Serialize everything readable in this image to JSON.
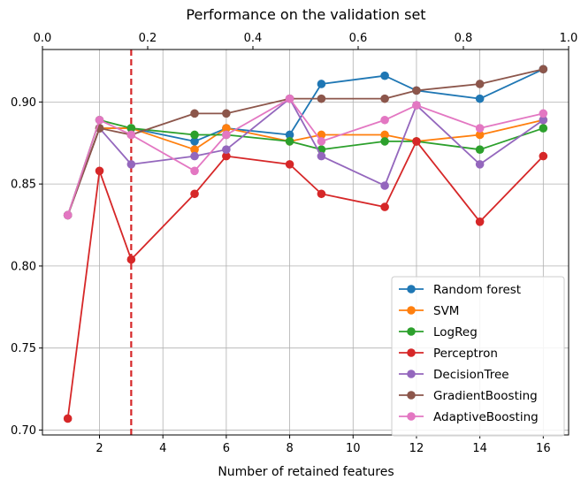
{
  "chart_data": {
    "type": "line",
    "title": "Performance on the validation set",
    "xlabel": "Number of retained features",
    "ylabel": "",
    "xlim": [
      0.2,
      16.8
    ],
    "ylim": [
      0.697,
      0.932
    ],
    "xticks": [
      2,
      4,
      6,
      8,
      10,
      12,
      14,
      16
    ],
    "yticks": [
      0.7,
      0.75,
      0.8,
      0.85,
      0.9
    ],
    "ytick_labels": [
      "0.70",
      "0.75",
      "0.80",
      "0.85",
      "0.90"
    ],
    "secondary_x": {
      "position": "top",
      "xlim": [
        0.0,
        1.0
      ],
      "ticks": [
        0.0,
        0.2,
        0.4,
        0.6,
        0.8,
        1.0
      ],
      "tick_labels": [
        "0.0",
        "0.2",
        "0.4",
        "0.6",
        "0.8",
        "1.0"
      ]
    },
    "grid": true,
    "legend_position": "lower-right",
    "vline": {
      "x": 3,
      "color": "#d62728",
      "style": "dashed"
    },
    "x": [
      1,
      2,
      3,
      5,
      6,
      8,
      9,
      11,
      12,
      14,
      16
    ],
    "series": [
      {
        "name": "Random forest",
        "color": "#1f77b4",
        "values": [
          0.831,
          0.884,
          0.884,
          0.876,
          0.884,
          0.88,
          0.911,
          0.916,
          0.907,
          0.902,
          0.92
        ]
      },
      {
        "name": "SVM",
        "color": "#ff7f0e",
        "values": [
          0.831,
          0.884,
          0.884,
          0.871,
          0.884,
          0.876,
          0.88,
          0.88,
          0.876,
          0.88,
          0.889
        ]
      },
      {
        "name": "LogReg",
        "color": "#2ca02c",
        "values": [
          0.831,
          0.889,
          0.884,
          0.88,
          0.88,
          0.876,
          0.871,
          0.876,
          0.876,
          0.871,
          0.884
        ]
      },
      {
        "name": "Perceptron",
        "color": "#d62728",
        "values": [
          0.707,
          0.858,
          0.804,
          0.844,
          0.867,
          0.862,
          0.844,
          0.836,
          0.876,
          0.827,
          0.867
        ]
      },
      {
        "name": "DecisionTree",
        "color": "#9467bd",
        "values": [
          0.831,
          0.884,
          0.862,
          0.867,
          0.871,
          0.902,
          0.867,
          0.849,
          0.898,
          0.862,
          0.889
        ]
      },
      {
        "name": "GradientBoosting",
        "color": "#8c564b",
        "values": [
          0.831,
          0.884,
          0.88,
          0.893,
          0.893,
          0.902,
          0.902,
          0.902,
          0.907,
          0.911,
          0.92
        ]
      },
      {
        "name": "AdaptiveBoosting",
        "color": "#e377c2",
        "values": [
          0.831,
          0.889,
          0.88,
          0.858,
          0.88,
          0.902,
          0.876,
          0.889,
          0.898,
          0.884,
          0.893
        ]
      }
    ]
  }
}
